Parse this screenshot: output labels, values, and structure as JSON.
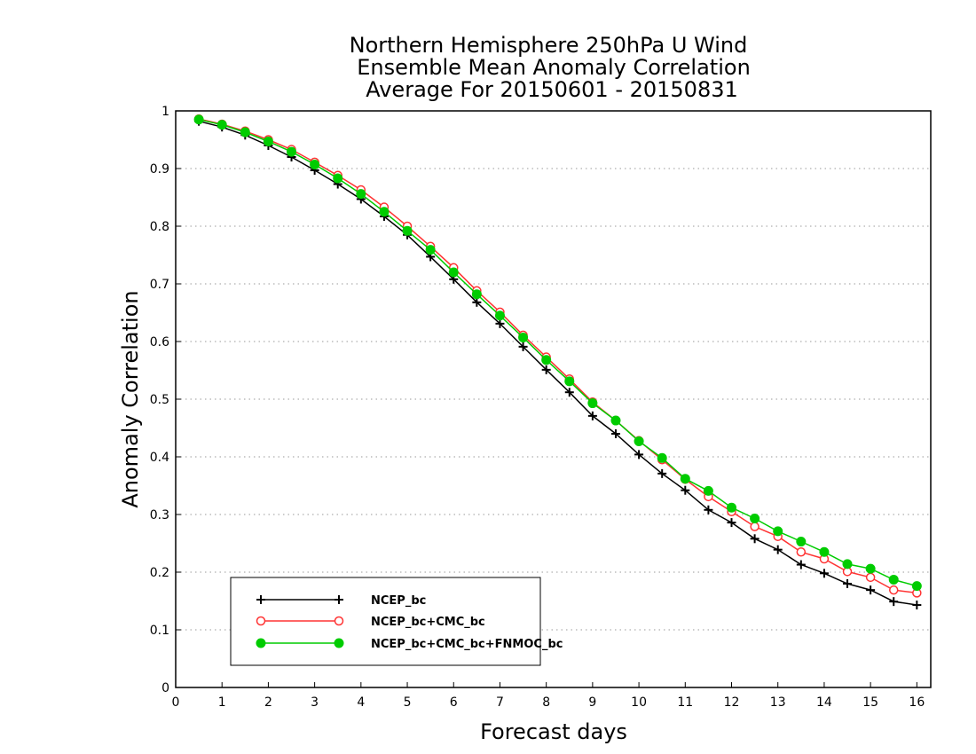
{
  "chart_data": {
    "type": "line",
    "title": [
      "Northern Hemisphere 250hPa U Wind",
      "Ensemble Mean Anomaly Correlation",
      "Average For 20150601 - 20150831"
    ],
    "xlabel": "Forecast days",
    "ylabel": "Anomaly Correlation",
    "xlim": [
      0,
      16.3
    ],
    "ylim": [
      0,
      1
    ],
    "x_ticks": [
      "0",
      "1",
      "2",
      "3",
      "4",
      "5",
      "6",
      "7",
      "8",
      "9",
      "10",
      "11",
      "12",
      "13",
      "14",
      "15",
      "16"
    ],
    "y_ticks": [
      "0",
      "0.1",
      "0.2",
      "0.3",
      "0.4",
      "0.5",
      "0.6",
      "0.7",
      "0.8",
      "0.9",
      "1"
    ],
    "grid": "dotted horizontal",
    "legend_position": "bottom-left",
    "x": [
      0.5,
      1,
      1.5,
      2,
      2.5,
      3,
      3.5,
      4,
      4.5,
      5,
      5.5,
      6,
      6.5,
      7,
      7.5,
      8,
      8.5,
      9,
      9.5,
      10,
      10.5,
      11,
      11.5,
      12,
      12.5,
      13,
      13.5,
      14,
      14.5,
      15,
      15.5,
      16
    ],
    "series": [
      {
        "name": "NCEP_bc",
        "color": "#000000",
        "marker": "plus",
        "values": [
          0.982,
          0.972,
          0.958,
          0.94,
          0.92,
          0.897,
          0.873,
          0.847,
          0.817,
          0.785,
          0.747,
          0.708,
          0.668,
          0.631,
          0.591,
          0.551,
          0.512,
          0.471,
          0.44,
          0.404,
          0.371,
          0.342,
          0.308,
          0.286,
          0.258,
          0.239,
          0.213,
          0.198,
          0.18,
          0.169,
          0.149,
          0.143
        ]
      },
      {
        "name": "NCEP_bc+CMC_bc",
        "color": "#ff3333",
        "marker": "open-circle",
        "values": [
          0.986,
          0.977,
          0.965,
          0.95,
          0.933,
          0.911,
          0.888,
          0.863,
          0.833,
          0.8,
          0.765,
          0.728,
          0.688,
          0.651,
          0.611,
          0.573,
          0.535,
          0.495,
          0.463,
          0.428,
          0.395,
          0.361,
          0.331,
          0.305,
          0.279,
          0.262,
          0.235,
          0.223,
          0.201,
          0.191,
          0.169,
          0.164
        ]
      },
      {
        "name": "NCEP_bc+CMC_bc+FNMOC_bc",
        "color": "#00cc00",
        "marker": "filled-circle",
        "values": [
          0.985,
          0.976,
          0.963,
          0.947,
          0.929,
          0.907,
          0.883,
          0.856,
          0.825,
          0.792,
          0.759,
          0.72,
          0.682,
          0.645,
          0.607,
          0.568,
          0.531,
          0.493,
          0.463,
          0.427,
          0.398,
          0.362,
          0.341,
          0.312,
          0.293,
          0.271,
          0.253,
          0.235,
          0.214,
          0.206,
          0.187,
          0.176
        ]
      }
    ]
  }
}
